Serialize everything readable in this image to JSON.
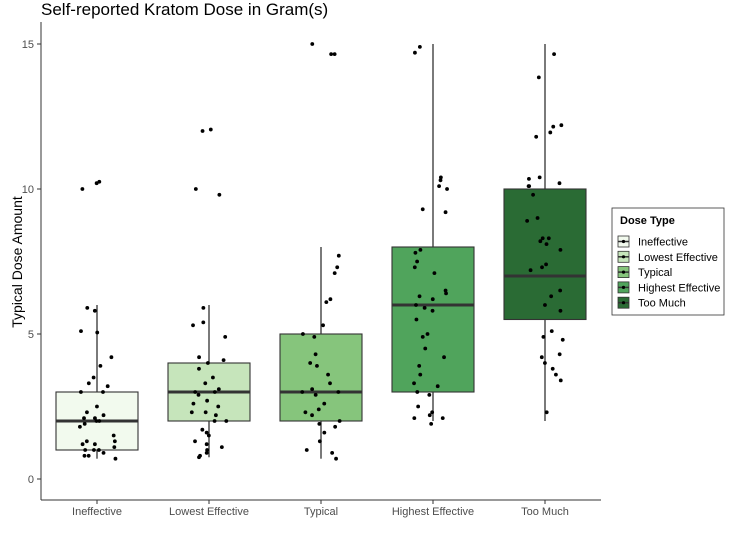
{
  "chart_data": {
    "type": "boxplot",
    "title": "Self-reported Kratom Dose in Gram(s)",
    "xlabel": "",
    "ylabel": "Typical Dose Amount",
    "ylim": [
      -0.5,
      15.8
    ],
    "yticks": [
      0,
      5,
      10,
      15
    ],
    "categories": [
      "Ineffective",
      "Lowest Effective",
      "Typical",
      "Highest Effective",
      "Too Much"
    ],
    "colors": [
      "#f2faee",
      "#c6e5bb",
      "#86c57c",
      "#50a45c",
      "#2a6b34"
    ],
    "legend": {
      "title": "Dose Type",
      "position": "right"
    },
    "grid": false,
    "boxes": [
      {
        "name": "Ineffective",
        "min": 0.7,
        "q1": 1.0,
        "median": 2.0,
        "q3": 3.0,
        "max": 6.0
      },
      {
        "name": "Lowest Effective",
        "min": 0.75,
        "q1": 2.0,
        "median": 3.0,
        "q3": 4.0,
        "max": 6.0
      },
      {
        "name": "Typical",
        "min": 0.7,
        "q1": 2.0,
        "median": 3.0,
        "q3": 5.0,
        "max": 8.0
      },
      {
        "name": "Highest Effective",
        "min": 2.0,
        "q1": 3.0,
        "median": 6.0,
        "q3": 8.0,
        "max": 15.0
      },
      {
        "name": "Too Much",
        "min": 2.0,
        "q1": 5.5,
        "median": 7.0,
        "q3": 10.0,
        "max": 15.0
      }
    ],
    "points": [
      [
        10.2,
        10.25,
        10.0,
        5.9,
        5.8,
        5.05,
        5.1,
        4.2,
        3.9,
        3.5,
        3.3,
        3.2,
        3.0,
        3.0,
        2.5,
        2.3,
        2.2,
        2.1,
        2.0,
        2.0,
        1.9,
        1.8,
        1.5,
        1.3,
        1.2,
        1.2,
        1.1,
        1.0,
        1.0,
        1.0,
        0.9,
        0.8,
        0.8,
        0.7,
        2.1,
        1.3
      ],
      [
        12.05,
        12.0,
        10.0,
        9.8,
        5.9,
        5.4,
        5.3,
        4.9,
        4.2,
        4.1,
        4.0,
        3.8,
        3.5,
        3.3,
        3.1,
        3.0,
        3.0,
        2.9,
        2.7,
        2.6,
        2.3,
        2.3,
        2.2,
        2.0,
        2.0,
        1.7,
        1.6,
        1.5,
        1.2,
        1.1,
        1.0,
        0.9,
        0.8,
        0.75,
        2.5,
        1.3
      ],
      [
        15.0,
        14.65,
        14.65,
        7.7,
        7.3,
        7.1,
        6.2,
        6.1,
        5.3,
        5.0,
        4.9,
        4.3,
        4.0,
        3.9,
        3.6,
        3.3,
        3.1,
        3.0,
        3.0,
        2.9,
        2.6,
        2.4,
        2.3,
        2.0,
        1.9,
        1.8,
        1.6,
        1.3,
        1.0,
        0.9,
        0.7,
        2.2
      ],
      [
        14.7,
        14.9,
        10.4,
        10.3,
        10.1,
        10.0,
        9.3,
        9.2,
        7.9,
        7.8,
        7.5,
        7.3,
        7.1,
        6.5,
        6.4,
        6.3,
        6.2,
        6.0,
        5.9,
        5.8,
        5.5,
        5.0,
        4.9,
        4.5,
        4.2,
        3.9,
        3.6,
        3.3,
        3.2,
        3.0,
        2.9,
        2.5,
        2.3,
        2.2,
        2.1,
        2.1,
        1.9
      ],
      [
        14.65,
        13.85,
        12.2,
        12.15,
        11.95,
        11.8,
        10.4,
        10.35,
        10.2,
        10.1,
        10.1,
        9.8,
        9.0,
        8.9,
        8.3,
        8.3,
        8.2,
        8.1,
        7.9,
        7.4,
        7.3,
        7.2,
        6.5,
        6.3,
        6.0,
        5.8,
        5.1,
        4.9,
        4.8,
        4.3,
        4.2,
        4.0,
        3.8,
        3.6,
        3.4,
        2.3
      ]
    ]
  }
}
